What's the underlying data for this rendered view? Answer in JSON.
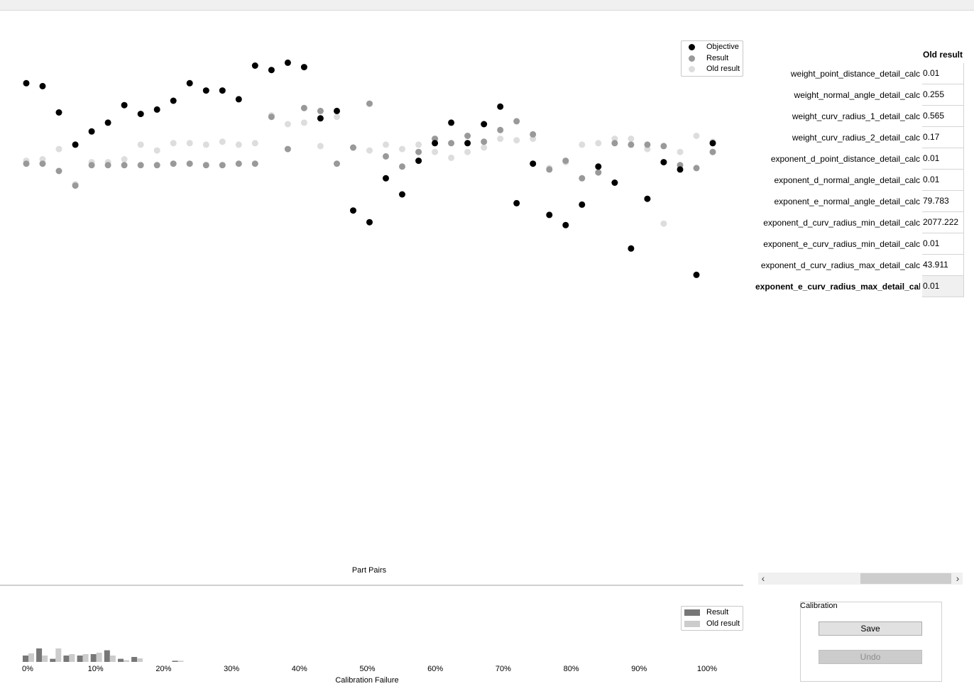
{
  "scatter": {
    "xlabel": "Part Pairs",
    "legend": [
      {
        "label": "Objective",
        "color": "#000000"
      },
      {
        "label": "Result",
        "color": "#999999"
      },
      {
        "label": "Old result",
        "color": "#dddddd"
      }
    ]
  },
  "histogram": {
    "xlabel": "Calibration Failure",
    "legend": [
      {
        "label": "Result",
        "color": "#777777"
      },
      {
        "label": "Old result",
        "color": "#cccccc"
      }
    ]
  },
  "chart_data": [
    {
      "type": "scatter",
      "title": "",
      "xlabel": "Part Pairs",
      "ylabel": "",
      "x": [
        1,
        2,
        3,
        4,
        5,
        6,
        7,
        8,
        9,
        10,
        11,
        12,
        13,
        14,
        15,
        16,
        17,
        18,
        19,
        20,
        21,
        22,
        23,
        24,
        25,
        26,
        27,
        28,
        29,
        30,
        31,
        32,
        33,
        34,
        35,
        36,
        37,
        38,
        39,
        40,
        41,
        42,
        43
      ],
      "series": [
        {
          "name": "Objective",
          "color": "#000000",
          "values": [
            0.8,
            0.78,
            0.6,
            0.38,
            0.47,
            0.53,
            0.65,
            0.59,
            0.62,
            0.68,
            0.8,
            0.75,
            0.75,
            0.69,
            0.92,
            0.89,
            0.94,
            0.91,
            0.56,
            0.61,
            -0.07,
            -0.15,
            0.15,
            0.04,
            0.27,
            0.39,
            0.53,
            0.39,
            0.52,
            0.64,
            -0.02,
            0.25,
            -0.1,
            -0.17,
            -0.03,
            0.23,
            0.12,
            -0.33,
            0.01,
            0.26,
            0.21,
            -0.51,
            0.39
          ]
        },
        {
          "name": "Result",
          "color": "#999999",
          "values": [
            0.25,
            0.25,
            0.2,
            0.1,
            0.24,
            0.24,
            0.24,
            0.24,
            0.24,
            0.25,
            0.25,
            0.24,
            0.24,
            0.25,
            0.25,
            0.57,
            0.35,
            0.63,
            0.61,
            0.25,
            0.36,
            0.66,
            0.3,
            0.23,
            0.33,
            0.42,
            0.39,
            0.44,
            0.4,
            0.48,
            0.54,
            0.45,
            0.21,
            0.27,
            0.15,
            0.19,
            0.39,
            0.38,
            0.38,
            0.37,
            0.24,
            0.22,
            0.33
          ]
        },
        {
          "name": "Old result",
          "color": "#dddddd",
          "values": [
            0.27,
            0.28,
            0.35,
            0.11,
            0.26,
            0.26,
            0.28,
            0.38,
            0.34,
            0.39,
            0.39,
            0.38,
            0.4,
            0.38,
            0.39,
            0.58,
            0.52,
            0.53,
            0.37,
            0.57,
            0.36,
            0.34,
            0.38,
            0.35,
            0.38,
            0.33,
            0.29,
            0.33,
            0.36,
            0.42,
            0.41,
            0.42,
            0.22,
            0.26,
            0.38,
            0.39,
            0.42,
            0.42,
            0.35,
            -0.16,
            0.33,
            0.44,
            0.4
          ]
        }
      ]
    },
    {
      "type": "bar",
      "title": "",
      "xlabel": "Calibration Failure",
      "ylabel": "",
      "x_ticks": [
        "0%",
        "10%",
        "20%",
        "30%",
        "40%",
        "50%",
        "60%",
        "70%",
        "80%",
        "90%",
        "100%"
      ],
      "bin_starts_percent": [
        0,
        2,
        4,
        6,
        8,
        10,
        12,
        14,
        16,
        18,
        20,
        22
      ],
      "series": [
        {
          "name": "Result",
          "color": "#777777",
          "values": [
            0.45,
            0.95,
            0.22,
            0.45,
            0.45,
            0.55,
            0.82,
            0.22,
            0.35,
            0,
            0,
            0.08
          ]
        },
        {
          "name": "Old result",
          "color": "#cccccc",
          "values": [
            0.6,
            0.45,
            0.95,
            0.55,
            0.55,
            0.65,
            0.45,
            0.12,
            0.25,
            0,
            0,
            0.08
          ]
        }
      ]
    }
  ],
  "params": {
    "header": "Old result",
    "rows": [
      {
        "name": "weight_point_distance_detail_calc",
        "value": "0.01"
      },
      {
        "name": "weight_normal_angle_detail_calc",
        "value": "0.255"
      },
      {
        "name": "weight_curv_radius_1_detail_calc",
        "value": "0.565"
      },
      {
        "name": "weight_curv_radius_2_detail_calc",
        "value": "0.17"
      },
      {
        "name": "exponent_d_point_distance_detail_calc",
        "value": "0.01"
      },
      {
        "name": "exponent_d_normal_angle_detail_calc",
        "value": "0.01"
      },
      {
        "name": "exponent_e_normal_angle_detail_calc",
        "value": "79.783"
      },
      {
        "name": "exponent_d_curv_radius_min_detail_calc",
        "value": "2077.222"
      },
      {
        "name": "exponent_e_curv_radius_min_detail_calc",
        "value": "0.01"
      },
      {
        "name": "exponent_d_curv_radius_max_detail_calc",
        "value": "43.911"
      },
      {
        "name": "exponent_e_curv_radius_max_detail_calc",
        "value": "0.01"
      }
    ]
  },
  "scrollbar": {
    "left_arrow": "‹",
    "right_arrow": "›"
  },
  "calibration": {
    "title": "Calibration",
    "save_label": "Save",
    "undo_label": "Undo"
  }
}
